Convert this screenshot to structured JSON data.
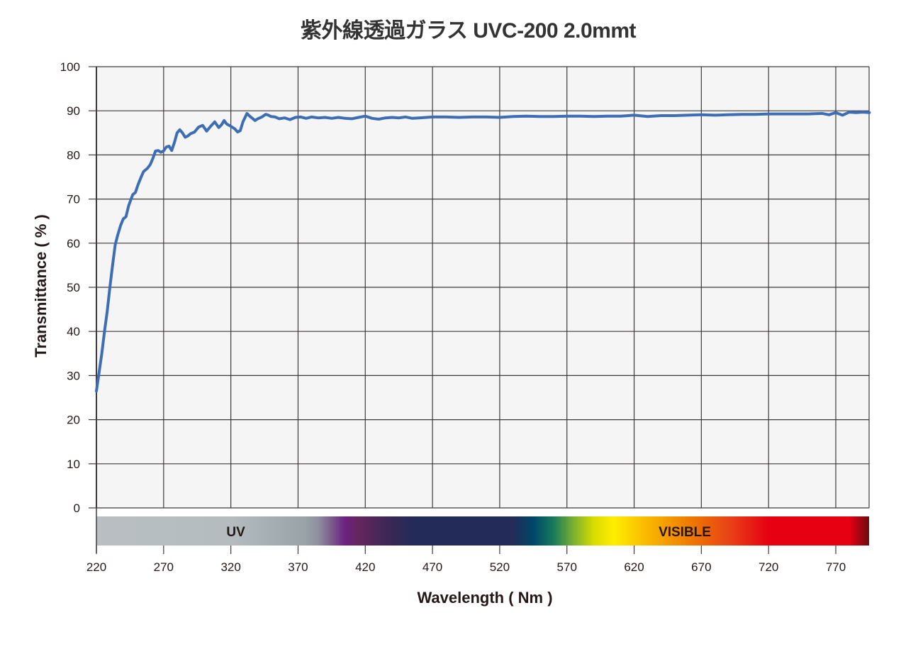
{
  "chart_data": {
    "type": "line",
    "title": "紫外線透過ガラス UVC-200 2.0mmt",
    "xlabel": "Wavelength ( Nm )",
    "ylabel": "Transmittance ( % )",
    "xlim": [
      220,
      795
    ],
    "ylim": [
      0,
      100
    ],
    "grid": true,
    "x_ticks": [
      220,
      270,
      320,
      370,
      420,
      470,
      520,
      570,
      620,
      670,
      720,
      770
    ],
    "y_ticks": [
      0,
      10,
      20,
      30,
      40,
      50,
      60,
      70,
      80,
      90,
      100
    ],
    "line_color": "#3d6eb4",
    "background_color": "#f5f5f5",
    "spectrum_band": {
      "labels": [
        {
          "text": "UV",
          "x_nm": 320
        },
        {
          "text": "VISIBLE",
          "x_nm": 654
        }
      ],
      "stops": [
        {
          "nm": 220,
          "color": "#b9bfc2"
        },
        {
          "nm": 320,
          "color": "#b4bcc0"
        },
        {
          "nm": 375,
          "color": "#99a3a8"
        },
        {
          "nm": 385,
          "color": "#8f8fa0"
        },
        {
          "nm": 395,
          "color": "#7a5c8c"
        },
        {
          "nm": 405,
          "color": "#6a2280"
        },
        {
          "nm": 415,
          "color": "#66265d"
        },
        {
          "nm": 435,
          "color": "#3f2756"
        },
        {
          "nm": 455,
          "color": "#232b58"
        },
        {
          "nm": 530,
          "color": "#232b58"
        },
        {
          "nm": 545,
          "color": "#004668"
        },
        {
          "nm": 560,
          "color": "#177a5a"
        },
        {
          "nm": 575,
          "color": "#7ab032"
        },
        {
          "nm": 590,
          "color": "#d8dc00"
        },
        {
          "nm": 605,
          "color": "#ffee00"
        },
        {
          "nm": 625,
          "color": "#fbc200"
        },
        {
          "nm": 660,
          "color": "#ef7d00"
        },
        {
          "nm": 690,
          "color": "#e84516"
        },
        {
          "nm": 720,
          "color": "#e60012"
        },
        {
          "nm": 780,
          "color": "#e60012"
        },
        {
          "nm": 795,
          "color": "#6b0a10"
        }
      ]
    },
    "series": [
      {
        "name": "UVC-200 2.0mmt",
        "x": [
          220,
          222,
          224,
          226,
          228,
          230,
          232,
          234,
          236,
          238,
          240,
          242,
          244,
          247,
          249,
          251,
          253,
          255,
          258,
          260,
          262,
          264,
          266,
          268,
          270,
          272,
          274,
          276,
          278,
          280,
          282,
          284,
          286,
          288,
          290,
          293,
          296,
          299,
          302,
          305,
          308,
          311,
          313,
          315,
          317,
          320,
          323,
          325,
          327,
          329,
          332,
          334,
          336,
          338,
          340,
          343,
          346,
          348,
          350,
          353,
          356,
          360,
          364,
          368,
          372,
          376,
          380,
          385,
          390,
          395,
          400,
          405,
          410,
          415,
          420,
          425,
          430,
          435,
          440,
          445,
          450,
          455,
          460,
          470,
          480,
          490,
          500,
          510,
          520,
          530,
          540,
          550,
          560,
          570,
          580,
          590,
          600,
          610,
          620,
          630,
          640,
          650,
          660,
          670,
          680,
          690,
          700,
          710,
          720,
          730,
          740,
          750,
          760,
          765,
          770,
          775,
          780,
          785,
          790,
          795
        ],
        "values": [
          26.5,
          30.7,
          35,
          40,
          44.5,
          50,
          55,
          59.6,
          62,
          64,
          65.5,
          66,
          68.5,
          71,
          71.5,
          73.3,
          74.8,
          76.2,
          77,
          77.8,
          79.2,
          80.9,
          81,
          80.6,
          80.9,
          81.8,
          82,
          81,
          82.8,
          85,
          85.7,
          85,
          84,
          84.3,
          84.8,
          85.2,
          86.3,
          86.7,
          85.4,
          86.5,
          87.5,
          86.2,
          86.8,
          87.8,
          87,
          86.5,
          85.9,
          85.2,
          85.5,
          87.5,
          89.4,
          88.8,
          88.3,
          87.8,
          88.2,
          88.6,
          89.2,
          89.0,
          88.7,
          88.6,
          88.2,
          88.4,
          88.0,
          88.5,
          88.6,
          88.3,
          88.6,
          88.4,
          88.5,
          88.3,
          88.5,
          88.3,
          88.2,
          88.5,
          88.8,
          88.3,
          88.1,
          88.4,
          88.5,
          88.4,
          88.6,
          88.3,
          88.4,
          88.6,
          88.6,
          88.5,
          88.6,
          88.6,
          88.5,
          88.7,
          88.8,
          88.7,
          88.7,
          88.8,
          88.8,
          88.7,
          88.8,
          88.8,
          89.0,
          88.7,
          88.9,
          88.9,
          89.0,
          89.1,
          89.0,
          89.1,
          89.2,
          89.2,
          89.3,
          89.3,
          89.3,
          89.3,
          89.4,
          89.1,
          89.6,
          89.0,
          89.7,
          89.6,
          89.7,
          89.6
        ]
      }
    ]
  }
}
